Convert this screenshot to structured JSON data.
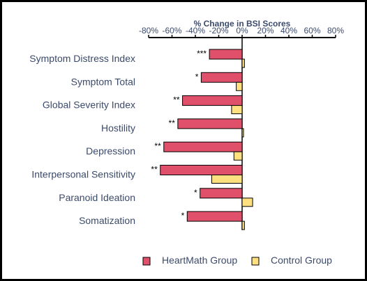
{
  "chart_data": {
    "type": "bar",
    "orientation": "horizontal",
    "title": "% Change in BSI Scores",
    "xlim": [
      -80,
      80
    ],
    "x_ticks": [
      -80,
      -60,
      -40,
      -20,
      0,
      20,
      40,
      60,
      80
    ],
    "x_tick_labels": [
      "-80%",
      "-60%",
      "-40%",
      "-20%",
      "0%",
      "20%",
      "40%",
      "60%",
      "80%"
    ],
    "axis_position": "top",
    "grid": false,
    "categories": [
      "Symptom Distress Index",
      "Symptom Total",
      "Global Severity Index",
      "Hostility",
      "Depression",
      "Interpersonal Sensitivity",
      "Paranoid Ideation",
      "Somatization"
    ],
    "series": [
      {
        "name": "HeartMath Group",
        "color": "#e0506a",
        "values": [
          -28,
          -35,
          -51,
          -55,
          -67,
          -70,
          -36,
          -47
        ],
        "significance": [
          "***",
          "*",
          "**",
          "**",
          "**",
          "**",
          "*",
          "*"
        ]
      },
      {
        "name": "Control Group",
        "color": "#ffe080",
        "values": [
          2,
          -5,
          -9,
          0,
          -7,
          -26,
          9,
          2
        ]
      }
    ],
    "legend_position": "bottom"
  }
}
